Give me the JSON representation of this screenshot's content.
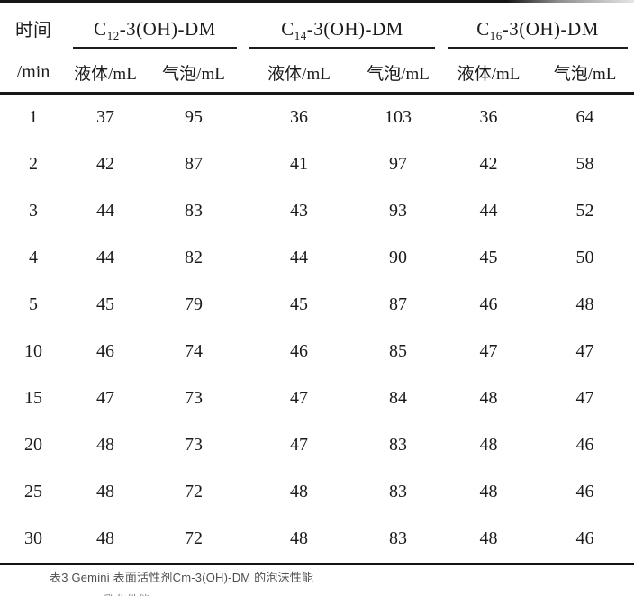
{
  "table": {
    "time_header": {
      "line1": "时间",
      "line2": "/min"
    },
    "groups": [
      {
        "prefix": "C",
        "sub": "12",
        "suffix": "-3(OH)-DM",
        "col1": "液体/mL",
        "col2": "气泡/mL"
      },
      {
        "prefix": "C",
        "sub": "14",
        "suffix": "-3(OH)-DM",
        "col1": "液体/mL",
        "col2": "气泡/mL"
      },
      {
        "prefix": "C",
        "sub": "16",
        "suffix": "-3(OH)-DM",
        "col1": "液体/mL",
        "col2": "气泡/mL"
      }
    ],
    "rows": [
      {
        "time": "1",
        "values": [
          "37",
          "95",
          "36",
          "103",
          "36",
          "64"
        ]
      },
      {
        "time": "2",
        "values": [
          "42",
          "87",
          "41",
          "97",
          "42",
          "58"
        ]
      },
      {
        "time": "3",
        "values": [
          "44",
          "83",
          "43",
          "93",
          "44",
          "52"
        ]
      },
      {
        "time": "4",
        "values": [
          "44",
          "82",
          "44",
          "90",
          "45",
          "50"
        ]
      },
      {
        "time": "5",
        "values": [
          "45",
          "79",
          "45",
          "87",
          "46",
          "48"
        ]
      },
      {
        "time": "10",
        "values": [
          "46",
          "74",
          "46",
          "85",
          "47",
          "47"
        ]
      },
      {
        "time": "15",
        "values": [
          "47",
          "73",
          "47",
          "84",
          "48",
          "47"
        ]
      },
      {
        "time": "20",
        "values": [
          "48",
          "73",
          "47",
          "83",
          "48",
          "46"
        ]
      },
      {
        "time": "25",
        "values": [
          "48",
          "72",
          "48",
          "83",
          "48",
          "46"
        ]
      },
      {
        "time": "30",
        "values": [
          "48",
          "72",
          "48",
          "83",
          "48",
          "46"
        ]
      }
    ]
  },
  "caption": "表3 Gemini 表面活性剂Cm-3(OH)-DM 的泡沫性能",
  "partial_next_line": "乳化性能",
  "colors": {
    "text": "#1b1b1b",
    "rule": "#161616",
    "caption_text": "#4f4f4f",
    "background": "#ffffff"
  }
}
